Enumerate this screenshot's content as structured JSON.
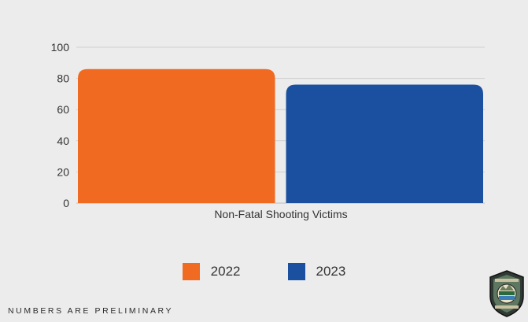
{
  "chart_data": {
    "type": "bar",
    "xlabel": "Non-Fatal Shooting Victims",
    "ylim": [
      0,
      100
    ],
    "yticks": [
      0,
      20,
      40,
      60,
      80,
      100
    ],
    "grid": true,
    "legend_position": "bottom",
    "series": [
      {
        "name": "2022",
        "values": [
          86
        ],
        "color": "#f06a22"
      },
      {
        "name": "2023",
        "values": [
          76
        ],
        "color": "#1b4fa0"
      }
    ]
  },
  "footnote": "NUMBERS ARE PRELIMINARY",
  "seal_icon": "police-department-seal-icon"
}
